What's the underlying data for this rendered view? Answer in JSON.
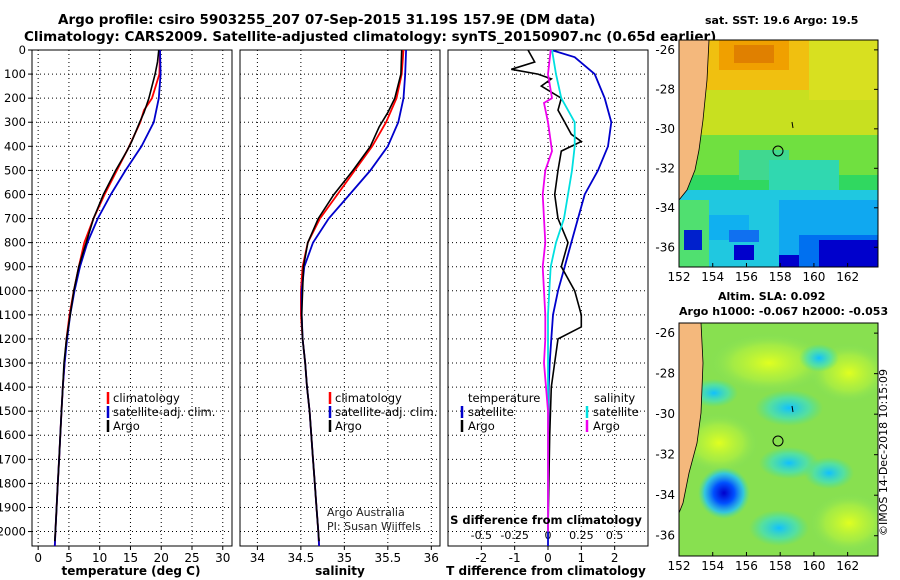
{
  "titles": {
    "line1": "Argo profile: csiro 5903255_207 07-Sep-2015 31.19S 157.9E (DM data)",
    "line2": "Climatology: CARS2009. Satellite-adjusted climatology: synTS_20150907.nc (0.65d earlier)"
  },
  "map_sst": {
    "title": "sat. SST: 19.6 Argo: 19.5",
    "lat_ticks": [
      "-26",
      "-28",
      "-30",
      "-32",
      "-34",
      "-36"
    ],
    "lon_ticks": [
      "152",
      "154",
      "156",
      "158",
      "160",
      "162"
    ]
  },
  "map_sla": {
    "title1": "Altim. SLA: 0.092",
    "title2": "Argo h1000: -0.067 h2000: -0.053",
    "lat_ticks": [
      "-26",
      "-28",
      "-30",
      "-32",
      "-34",
      "-36"
    ],
    "lon_ticks": [
      "152",
      "154",
      "156",
      "158",
      "160",
      "162"
    ]
  },
  "credit": "©IMOS 14-Dec-2018 10:15:09",
  "attribution": {
    "line1": "Argo Australia",
    "line2": "PI: Susan Wijffels"
  },
  "legend_profiles": {
    "climatology": "climatology",
    "satellite": "satellite-adj. clim.",
    "argo": "Argo"
  },
  "legend_diff": {
    "temperature": "temperature",
    "salinity": "salinity",
    "satellite": "satellite",
    "argo": "Argo"
  },
  "colors": {
    "climatology": "#ff0000",
    "satellite": "#0000cc",
    "argo": "#000000",
    "sal_satellite": "#00e0e0",
    "sal_argo": "#ee00ee"
  },
  "chart_data": [
    {
      "type": "line",
      "xlabel": "temperature (deg C)",
      "ylabel": "",
      "xlim": [
        -1,
        31.5
      ],
      "ylim": [
        2060,
        0
      ],
      "x_ticks": [
        0,
        5,
        10,
        15,
        20,
        25,
        30
      ],
      "y_ticks": [
        0,
        100,
        200,
        300,
        400,
        500,
        600,
        700,
        800,
        900,
        1000,
        1100,
        1200,
        1300,
        1400,
        1500,
        1600,
        1700,
        1800,
        1900,
        2000
      ],
      "series": [
        {
          "name": "climatology",
          "color": "red",
          "points": [
            [
              19.8,
              0
            ],
            [
              19.7,
              100
            ],
            [
              18.5,
              200
            ],
            [
              17.2,
              250
            ],
            [
              16.6,
              300
            ],
            [
              14.8,
              400
            ],
            [
              12.8,
              500
            ],
            [
              10.8,
              600
            ],
            [
              9.0,
              700
            ],
            [
              7.5,
              800
            ],
            [
              6.6,
              900
            ],
            [
              5.8,
              1000
            ],
            [
              5.1,
              1100
            ],
            [
              4.6,
              1200
            ],
            [
              4.3,
              1300
            ],
            [
              4.0,
              1400
            ],
            [
              3.8,
              1500
            ],
            [
              3.6,
              1600
            ],
            [
              3.4,
              1700
            ],
            [
              3.2,
              1800
            ],
            [
              3.0,
              1900
            ],
            [
              2.8,
              2000
            ],
            [
              2.7,
              2060
            ]
          ]
        },
        {
          "name": "satellite-adj. clim.",
          "color": "blue",
          "points": [
            [
              19.8,
              0
            ],
            [
              19.9,
              100
            ],
            [
              19.6,
              200
            ],
            [
              18.8,
              300
            ],
            [
              16.8,
              400
            ],
            [
              14.2,
              500
            ],
            [
              11.8,
              600
            ],
            [
              9.7,
              700
            ],
            [
              8.0,
              800
            ],
            [
              6.8,
              900
            ],
            [
              5.9,
              1000
            ],
            [
              5.2,
              1100
            ],
            [
              4.7,
              1200
            ],
            [
              4.3,
              1300
            ],
            [
              4.0,
              1400
            ],
            [
              3.8,
              1500
            ],
            [
              3.6,
              1600
            ],
            [
              3.4,
              1700
            ],
            [
              3.2,
              1800
            ],
            [
              3.0,
              1900
            ],
            [
              2.8,
              2000
            ],
            [
              2.7,
              2060
            ]
          ]
        },
        {
          "name": "Argo",
          "color": "black",
          "points": [
            [
              19.6,
              0
            ],
            [
              19.4,
              50
            ],
            [
              19.0,
              100
            ],
            [
              18.5,
              150
            ],
            [
              18.0,
              200
            ],
            [
              17.2,
              260
            ],
            [
              16.5,
              300
            ],
            [
              15.2,
              380
            ],
            [
              14.4,
              420
            ],
            [
              12.6,
              500
            ],
            [
              10.6,
              600
            ],
            [
              9.0,
              700
            ],
            [
              7.8,
              800
            ],
            [
              6.6,
              900
            ],
            [
              5.8,
              1000
            ],
            [
              5.2,
              1100
            ],
            [
              4.6,
              1200
            ],
            [
              4.2,
              1300
            ],
            [
              4.0,
              1400
            ],
            [
              3.8,
              1500
            ],
            [
              3.6,
              1600
            ],
            [
              3.4,
              1700
            ],
            [
              3.2,
              1800
            ],
            [
              3.0,
              1900
            ],
            [
              2.8,
              2000
            ],
            [
              2.7,
              2040
            ]
          ]
        }
      ]
    },
    {
      "type": "line",
      "xlabel": "salinity",
      "ylabel": "",
      "xlim": [
        33.8,
        36.1
      ],
      "ylim": [
        2060,
        0
      ],
      "x_ticks": [
        34,
        34.5,
        35,
        35.5,
        36
      ],
      "x_tick_labels": [
        "34",
        "34.5",
        "35",
        "35.5",
        "36"
      ],
      "series": [
        {
          "name": "climatology",
          "color": "red",
          "points": [
            [
              35.68,
              0
            ],
            [
              35.66,
              100
            ],
            [
              35.6,
              200
            ],
            [
              35.48,
              300
            ],
            [
              35.32,
              400
            ],
            [
              35.12,
              500
            ],
            [
              34.92,
              600
            ],
            [
              34.72,
              700
            ],
            [
              34.58,
              800
            ],
            [
              34.52,
              900
            ],
            [
              34.5,
              1000
            ],
            [
              34.5,
              1100
            ],
            [
              34.52,
              1200
            ],
            [
              34.55,
              1300
            ],
            [
              34.57,
              1400
            ],
            [
              34.6,
              1500
            ],
            [
              34.62,
              1600
            ],
            [
              34.64,
              1700
            ],
            [
              34.66,
              1800
            ],
            [
              34.68,
              1900
            ],
            [
              34.7,
              2000
            ],
            [
              34.71,
              2060
            ]
          ]
        },
        {
          "name": "satellite-adj. clim.",
          "color": "blue",
          "points": [
            [
              35.71,
              0
            ],
            [
              35.7,
              100
            ],
            [
              35.68,
              200
            ],
            [
              35.62,
              300
            ],
            [
              35.5,
              400
            ],
            [
              35.3,
              500
            ],
            [
              35.06,
              600
            ],
            [
              34.82,
              700
            ],
            [
              34.64,
              800
            ],
            [
              34.54,
              900
            ],
            [
              34.51,
              1000
            ],
            [
              34.51,
              1100
            ],
            [
              34.52,
              1200
            ],
            [
              34.55,
              1300
            ],
            [
              34.57,
              1400
            ],
            [
              34.6,
              1500
            ],
            [
              34.62,
              1600
            ],
            [
              34.64,
              1700
            ],
            [
              34.66,
              1800
            ],
            [
              34.68,
              1900
            ],
            [
              34.7,
              2000
            ],
            [
              34.71,
              2060
            ]
          ]
        },
        {
          "name": "Argo",
          "color": "black",
          "points": [
            [
              35.66,
              0
            ],
            [
              35.65,
              100
            ],
            [
              35.58,
              200
            ],
            [
              35.5,
              260
            ],
            [
              35.4,
              320
            ],
            [
              35.3,
              400
            ],
            [
              35.1,
              500
            ],
            [
              34.88,
              600
            ],
            [
              34.7,
              700
            ],
            [
              34.58,
              800
            ],
            [
              34.53,
              900
            ],
            [
              34.52,
              1000
            ],
            [
              34.51,
              1100
            ],
            [
              34.52,
              1200
            ],
            [
              34.55,
              1300
            ],
            [
              34.57,
              1400
            ],
            [
              34.6,
              1500
            ],
            [
              34.62,
              1600
            ],
            [
              34.64,
              1700
            ],
            [
              34.66,
              1800
            ],
            [
              34.68,
              1900
            ],
            [
              34.7,
              2000
            ],
            [
              34.71,
              2040
            ]
          ]
        }
      ]
    },
    {
      "type": "line",
      "xlabel": "T difference from climatology",
      "xlabel_top": "S difference from climatology",
      "ylabel": "",
      "xlim": [
        -3,
        3
      ],
      "ylim": [
        2060,
        0
      ],
      "x_ticks": [
        -2,
        -1,
        0,
        1,
        2
      ],
      "s_ticks": [
        -0.5,
        -0.25,
        0,
        0.25,
        0.5
      ],
      "s_tick_labels": [
        "-0.5",
        "-0.25",
        "0",
        "0.25",
        "0.5"
      ],
      "series": [
        {
          "name": "temperature satellite",
          "color": "blue",
          "units": "degC",
          "points": [
            [
              0.1,
              0
            ],
            [
              0.8,
              30
            ],
            [
              1.4,
              100
            ],
            [
              1.7,
              200
            ],
            [
              1.9,
              300
            ],
            [
              1.8,
              400
            ],
            [
              1.5,
              500
            ],
            [
              1.1,
              600
            ],
            [
              0.9,
              700
            ],
            [
              0.7,
              800
            ],
            [
              0.5,
              900
            ],
            [
              0.3,
              1000
            ],
            [
              0.15,
              1100
            ],
            [
              0.1,
              1200
            ],
            [
              0.05,
              1300
            ],
            [
              0.02,
              1400
            ],
            [
              0.01,
              1600
            ],
            [
              0,
              2060
            ]
          ]
        },
        {
          "name": "temperature Argo",
          "color": "black",
          "units": "degC",
          "points": [
            [
              -0.6,
              0
            ],
            [
              -0.4,
              50
            ],
            [
              -1.1,
              80
            ],
            [
              -0.3,
              100
            ],
            [
              0.1,
              120
            ],
            [
              -0.2,
              150
            ],
            [
              0.4,
              200
            ],
            [
              0.3,
              250
            ],
            [
              0.5,
              300
            ],
            [
              0.7,
              350
            ],
            [
              1.0,
              380
            ],
            [
              0.4,
              420
            ],
            [
              0.3,
              500
            ],
            [
              0.2,
              600
            ],
            [
              0.3,
              700
            ],
            [
              0.6,
              800
            ],
            [
              0.4,
              900
            ],
            [
              0.8,
              1000
            ],
            [
              1.0,
              1100
            ],
            [
              1.0,
              1150
            ],
            [
              0.3,
              1200
            ],
            [
              0.1,
              1400
            ],
            [
              0.05,
              1600
            ],
            [
              0,
              2000
            ]
          ]
        },
        {
          "name": "salinity satellite",
          "color": "cyan",
          "units": "psu",
          "points": [
            [
              0.03,
              0
            ],
            [
              0.06,
              100
            ],
            [
              0.1,
              200
            ],
            [
              0.2,
              300
            ],
            [
              0.2,
              400
            ],
            [
              0.18,
              500
            ],
            [
              0.15,
              600
            ],
            [
              0.12,
              700
            ],
            [
              0.06,
              800
            ],
            [
              0.02,
              900
            ],
            [
              0.01,
              1000
            ],
            [
              0,
              1100
            ],
            [
              0,
              2000
            ]
          ]
        },
        {
          "name": "salinity Argo",
          "color": "magenta",
          "units": "psu",
          "points": [
            [
              0.02,
              0
            ],
            [
              0.0,
              100
            ],
            [
              0.03,
              200
            ],
            [
              -0.03,
              220
            ],
            [
              0.0,
              300
            ],
            [
              0.02,
              380
            ],
            [
              0.03,
              420
            ],
            [
              -0.02,
              500
            ],
            [
              -0.04,
              600
            ],
            [
              -0.03,
              700
            ],
            [
              -0.02,
              800
            ],
            [
              -0.04,
              900
            ],
            [
              -0.03,
              1000
            ],
            [
              -0.02,
              1100
            ],
            [
              -0.02,
              1200
            ],
            [
              -0.03,
              1300
            ],
            [
              0,
              1500
            ],
            [
              0,
              2000
            ]
          ]
        }
      ]
    }
  ]
}
